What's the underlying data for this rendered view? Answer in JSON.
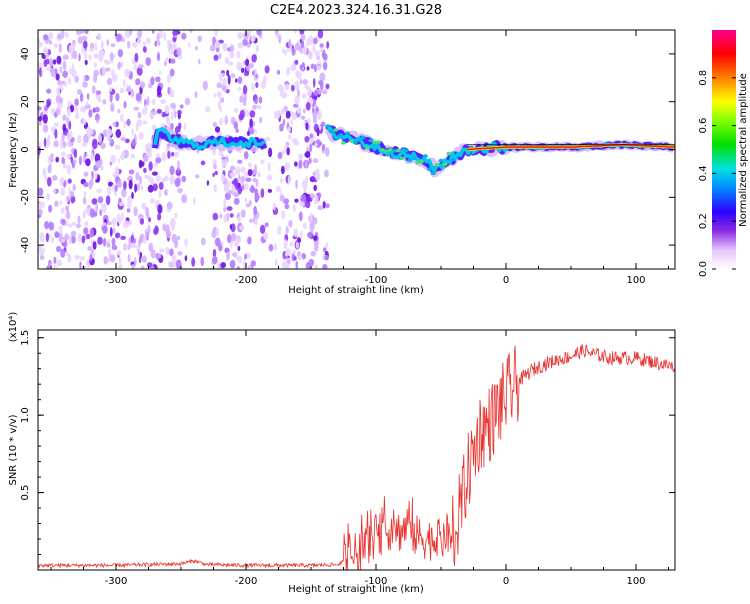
{
  "page_title": "C2E4.2023.324.16.31.G28",
  "chart_data": [
    {
      "type": "heatmap",
      "title": "C2E4.2023.324.16.31.G28",
      "xlabel": "Height of straight line (km)",
      "ylabel": "Frequency (Hz)",
      "xlim": [
        -360,
        130
      ],
      "ylim": [
        -50,
        50
      ],
      "x_ticks": [
        -300,
        -200,
        -100,
        0,
        100
      ],
      "x_tick_labels": [
        "-300",
        "-200",
        "-100",
        "0",
        "100"
      ],
      "y_ticks": [
        -40,
        -20,
        0,
        20,
        40
      ],
      "y_tick_labels": [
        "-40",
        "-20",
        "0",
        "20",
        "40"
      ],
      "colorbar": {
        "label": "Normalized spectral amplitude",
        "range": [
          0,
          1
        ],
        "ticks": [
          0.0,
          0.2,
          0.4,
          0.6,
          0.8
        ],
        "tick_labels": [
          "0.0",
          "0.2",
          "0.4",
          "0.6",
          "0.8"
        ]
      },
      "signal_track": [
        {
          "x": -268,
          "f": 8
        },
        {
          "x": -255,
          "f": 4
        },
        {
          "x": -240,
          "f": 2
        },
        {
          "x": -220,
          "f": 3
        },
        {
          "x": -200,
          "f": 3
        },
        {
          "x": -185,
          "f": 2
        },
        {
          "x": -135,
          "f": 7
        },
        {
          "x": -120,
          "f": 5
        },
        {
          "x": -100,
          "f": 1
        },
        {
          "x": -80,
          "f": -2
        },
        {
          "x": -65,
          "f": -4
        },
        {
          "x": -55,
          "f": -8
        },
        {
          "x": -40,
          "f": -3
        },
        {
          "x": -30,
          "f": 0
        },
        {
          "x": 0,
          "f": 1
        },
        {
          "x": 50,
          "f": 1
        },
        {
          "x": 90,
          "f": 2
        },
        {
          "x": 130,
          "f": 1
        }
      ],
      "noise_region_x": [
        -360,
        -137
      ]
    },
    {
      "type": "line",
      "xlabel": "Height of straight line (km)",
      "ylabel": "SNR (10 * v/v)",
      "y_multiplier": "(x10⁴)",
      "xlim": [
        -360,
        130
      ],
      "ylim": [
        0,
        15500
      ],
      "x_ticks": [
        -300,
        -200,
        -100,
        0,
        100
      ],
      "x_tick_labels": [
        "-300",
        "-200",
        "-100",
        "0",
        "100"
      ],
      "y_ticks": [
        5000,
        10000,
        15000
      ],
      "y_tick_labels": [
        "0.5",
        "1.0",
        "1.5"
      ],
      "color": "#e8332f",
      "series": [
        {
          "x": [
            -360,
            -300,
            -250,
            -240,
            -230,
            -200,
            -150,
            -130,
            -120,
            -110,
            -100,
            -90,
            -80,
            -75,
            -70,
            -60,
            -50,
            -40,
            -35,
            -30,
            -25,
            -20,
            -15,
            -10,
            -5,
            0,
            10,
            20,
            30,
            40,
            50,
            60,
            65,
            70,
            80,
            90,
            100,
            110,
            120,
            130
          ],
          "values": [
            300,
            300,
            400,
            600,
            350,
            300,
            300,
            350,
            700,
            1500,
            2200,
            2600,
            2500,
            3000,
            2200,
            2000,
            1900,
            2200,
            4000,
            6000,
            7500,
            9000,
            9200,
            9800,
            10500,
            11200,
            12200,
            12900,
            13300,
            13600,
            13800,
            14200,
            14000,
            13900,
            13700,
            13700,
            13700,
            13500,
            13300,
            13100
          ]
        }
      ]
    }
  ]
}
